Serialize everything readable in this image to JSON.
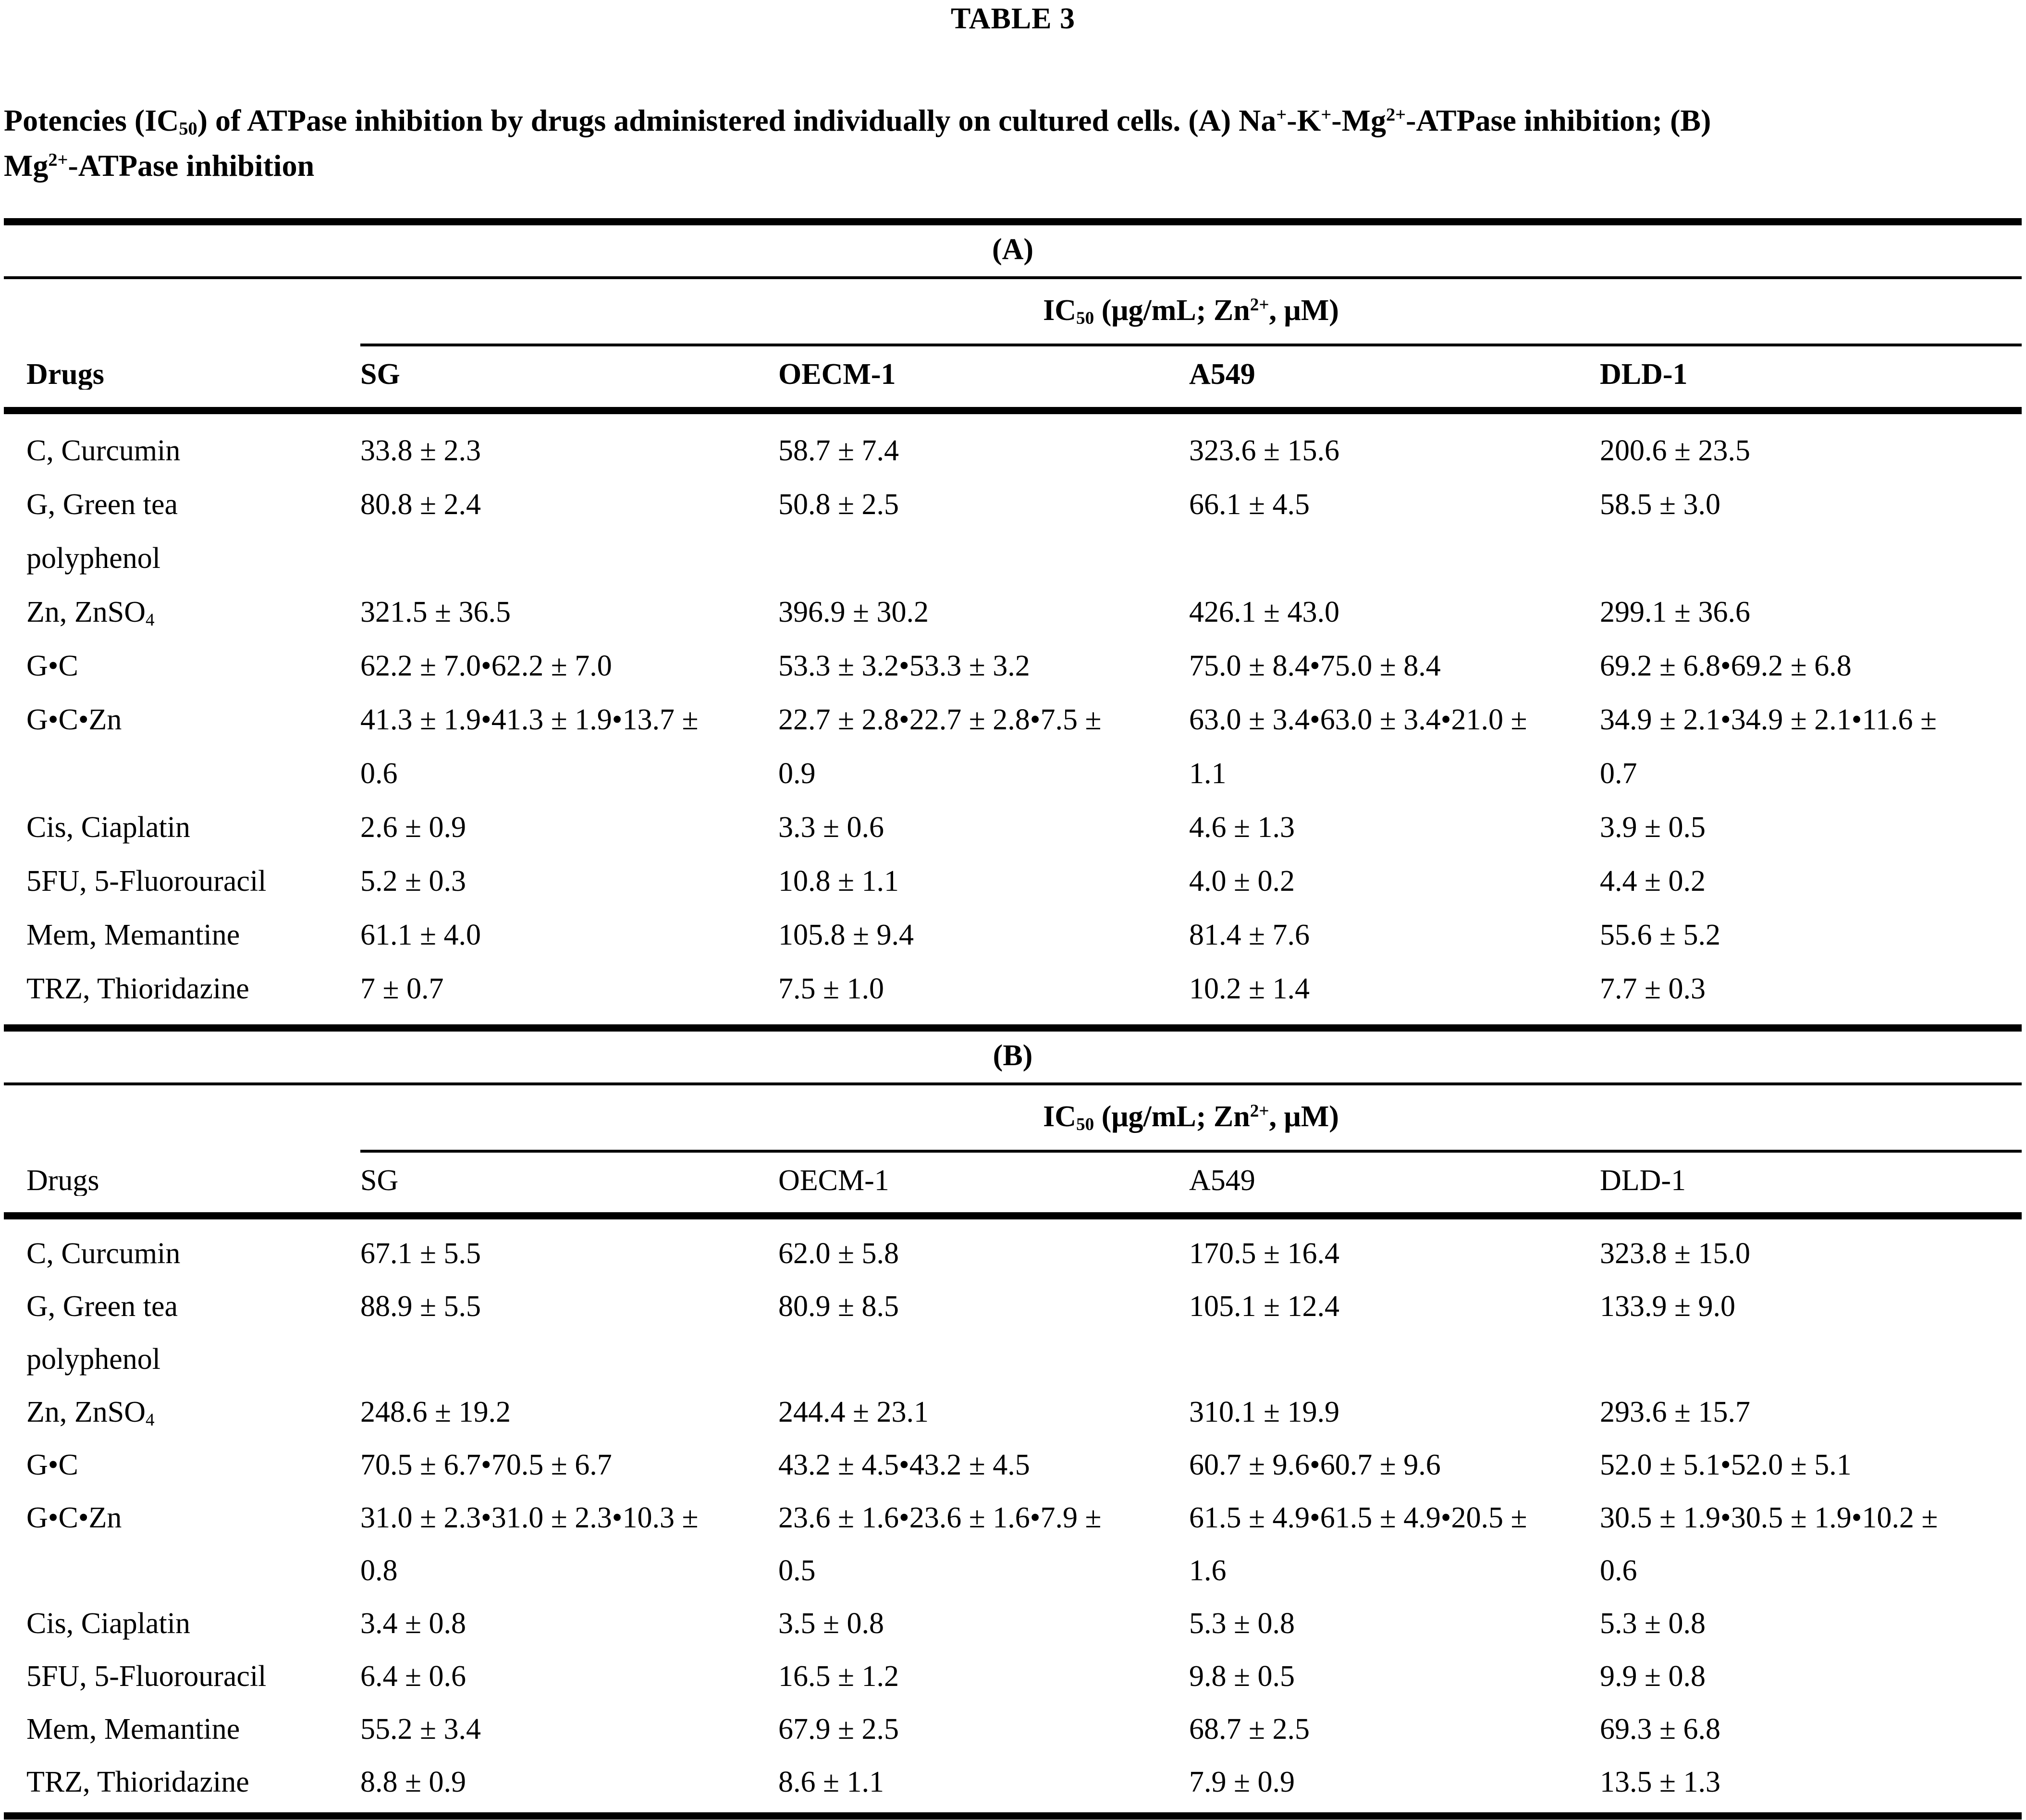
{
  "title": "TABLE 3",
  "caption": "Potencies (IC_{50}) of ATPase inhibition by drugs administered individually on cultured cells. (A) Na^{+}-K^{+}-Mg^{2+}-ATPase inhibition; (B)\nMg^{2+}-ATPase inhibition",
  "table": {
    "sections": [
      {
        "label": "(A)",
        "group_header": "IC_{50} (μg/mL; Zn^{2+}, μM)",
        "col_headers": [
          "Drugs",
          "SG",
          "OECM-1",
          "A549",
          "DLD-1"
        ],
        "rows": [
          {
            "drug": "C, Curcumin",
            "values": [
              "33.8 ± 2.3",
              "58.7 ± 7.4",
              "323.6 ± 15.6",
              "200.6 ± 23.5"
            ]
          },
          {
            "drug": "G, Green tea\npolyphenol",
            "values": [
              "80.8 ± 2.4",
              "50.8 ± 2.5",
              "66.1 ± 4.5",
              "58.5 ± 3.0"
            ]
          },
          {
            "drug": "Zn, ZnSO_{4}",
            "values": [
              "321.5 ± 36.5",
              "396.9 ± 30.2",
              "426.1 ± 43.0",
              "299.1 ± 36.6"
            ]
          },
          {
            "drug": "G•C",
            "values": [
              "62.2 ± 7.0•62.2 ± 7.0",
              "53.3 ± 3.2•53.3 ± 3.2",
              "75.0 ± 8.4•75.0 ± 8.4",
              "69.2 ± 6.8•69.2 ± 6.8"
            ]
          },
          {
            "drug": "G•C•Zn",
            "values": [
              "41.3 ± 1.9•41.3 ± 1.9•13.7 ±\n0.6",
              "22.7 ± 2.8•22.7 ± 2.8•7.5 ±\n0.9",
              "63.0 ± 3.4•63.0 ± 3.4•21.0 ±\n1.1",
              "34.9 ± 2.1•34.9 ± 2.1•11.6 ±\n0.7"
            ]
          },
          {
            "drug": "Cis, Ciaplatin",
            "values": [
              "2.6 ± 0.9",
              "3.3 ± 0.6",
              "4.6 ± 1.3",
              "3.9 ± 0.5"
            ]
          },
          {
            "drug": "5FU, 5-Fluorouracil",
            "values": [
              "5.2 ± 0.3",
              "10.8 ± 1.1",
              "4.0 ± 0.2",
              "4.4 ± 0.2"
            ]
          },
          {
            "drug": "Mem, Memantine",
            "values": [
              "61.1 ± 4.0",
              "105.8 ± 9.4",
              "81.4 ± 7.6",
              "55.6 ± 5.2"
            ]
          },
          {
            "drug": "TRZ, Thioridazine",
            "values": [
              "7 ± 0.7",
              "7.5 ± 1.0",
              "10.2 ± 1.4",
              "7.7 ± 0.3"
            ]
          }
        ]
      },
      {
        "label": "(B)",
        "group_header": "IC_{50} (μg/mL; Zn^{2+}, μM)",
        "col_headers": [
          "Drugs",
          "SG",
          "OECM-1",
          "A549",
          "DLD-1"
        ],
        "rows": [
          {
            "drug": "C, Curcumin",
            "values": [
              "67.1 ± 5.5",
              "62.0 ± 5.8",
              "170.5 ± 16.4",
              "323.8 ± 15.0"
            ]
          },
          {
            "drug": "G, Green tea\npolyphenol",
            "values": [
              "88.9 ± 5.5",
              "80.9 ± 8.5",
              "105.1 ± 12.4",
              "133.9 ± 9.0"
            ]
          },
          {
            "drug": "Zn, ZnSO_{4}",
            "values": [
              "248.6 ± 19.2",
              "244.4 ± 23.1",
              "310.1 ± 19.9",
              "293.6 ± 15.7"
            ]
          },
          {
            "drug": "G•C",
            "values": [
              "70.5 ± 6.7•70.5 ± 6.7",
              "43.2 ± 4.5•43.2 ± 4.5",
              "60.7 ± 9.6•60.7 ± 9.6",
              "52.0 ± 5.1•52.0 ± 5.1"
            ]
          },
          {
            "drug": "G•C•Zn",
            "values": [
              "31.0 ± 2.3•31.0 ± 2.3•10.3 ±\n0.8",
              "23.6 ± 1.6•23.6 ± 1.6•7.9 ±\n0.5",
              "61.5 ± 4.9•61.5 ± 4.9•20.5 ±\n1.6",
              "30.5 ± 1.9•30.5 ± 1.9•10.2 ±\n0.6"
            ]
          },
          {
            "drug": "Cis, Ciaplatin",
            "values": [
              "3.4 ± 0.8",
              "3.5 ± 0.8",
              "5.3 ± 0.8",
              "5.3 ± 0.8"
            ]
          },
          {
            "drug": "5FU, 5-Fluorouracil",
            "values": [
              "6.4 ± 0.6",
              "16.5 ± 1.2",
              "9.8 ± 0.5",
              "9.9 ± 0.8"
            ]
          },
          {
            "drug": "Mem, Memantine",
            "values": [
              "55.2 ± 3.4",
              "67.9 ± 2.5",
              "68.7 ± 2.5",
              "69.3 ± 6.8"
            ]
          },
          {
            "drug": "TRZ, Thioridazine",
            "values": [
              "8.8 ± 0.9",
              "8.6 ± 1.1",
              "7.9 ± 0.9",
              "13.5 ± 1.3"
            ]
          }
        ]
      }
    ]
  }
}
